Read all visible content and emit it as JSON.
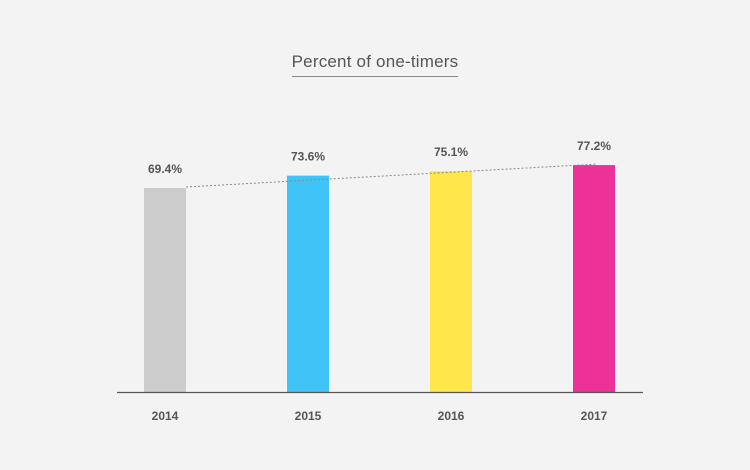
{
  "chart_data": {
    "type": "bar",
    "title": "Percent of one-timers",
    "categories": [
      "2014",
      "2015",
      "2016",
      "2017"
    ],
    "values": [
      69.4,
      73.6,
      75.1,
      77.2
    ],
    "data_labels": [
      "69.4%",
      "73.6%",
      "75.1%",
      "77.2%"
    ],
    "bar_colors": [
      "#cccccc",
      "#40c4f8",
      "#ffe64a",
      "#ec3199"
    ],
    "ylim": [
      0,
      100
    ],
    "grid": false,
    "legend": "none",
    "trendline": {
      "style": "dashed",
      "color": "#8a8a8a"
    },
    "axis_color": "#555555"
  }
}
